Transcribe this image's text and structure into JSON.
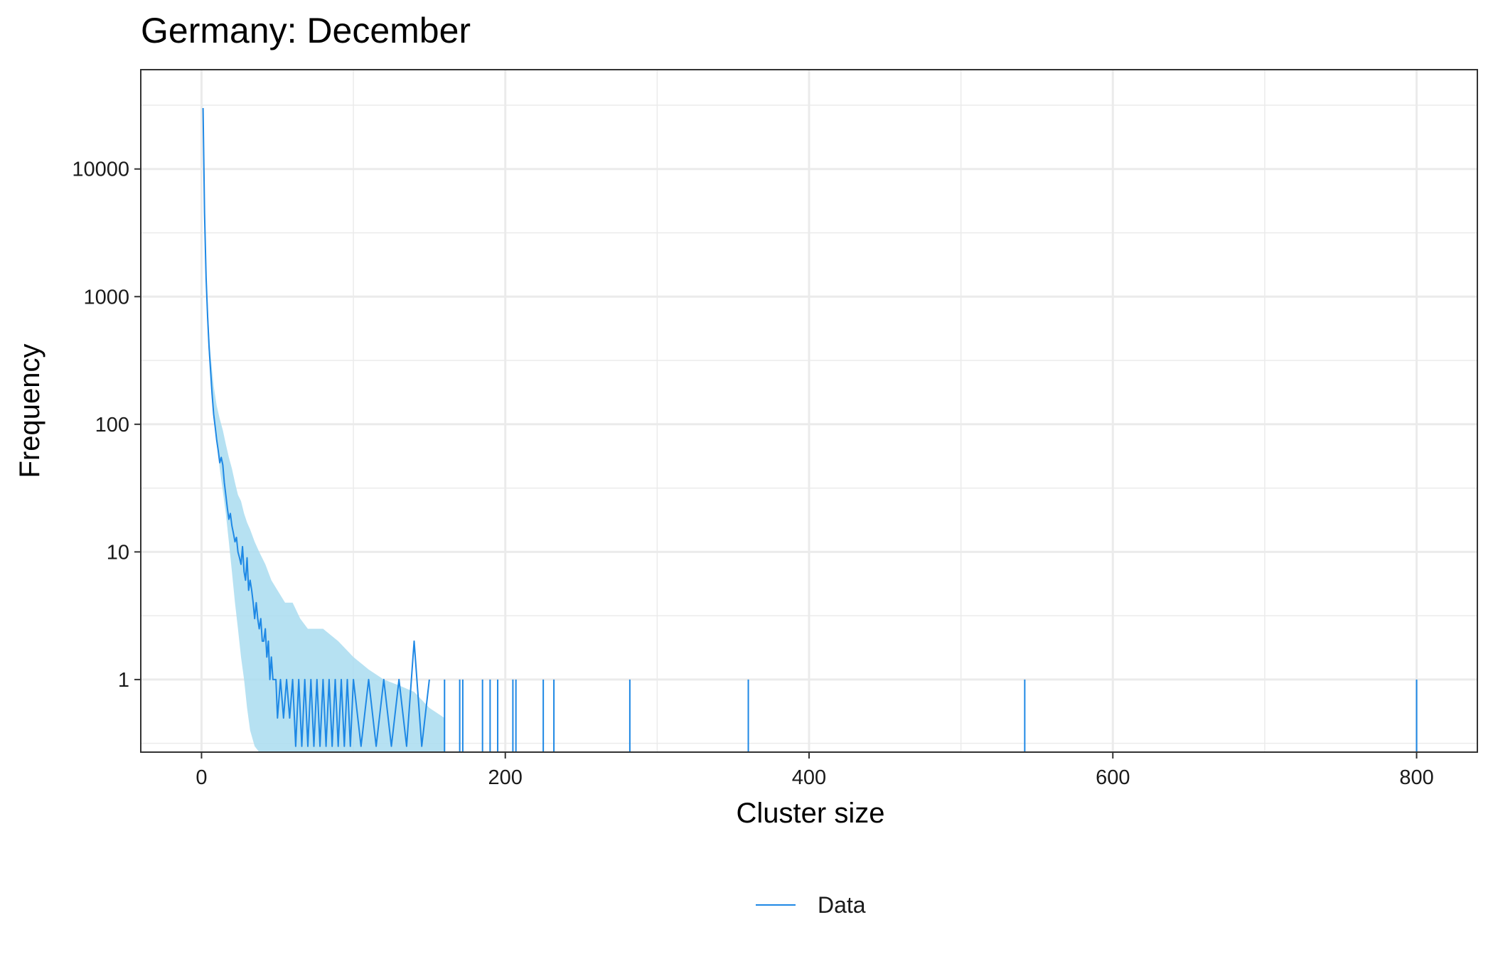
{
  "chart_data": {
    "type": "line",
    "title": "Germany: December",
    "xlabel": "Cluster size",
    "ylabel": "Frequency",
    "xlim": [
      -40,
      840
    ],
    "y_scale": "log10",
    "ylim": [
      0.27,
      60000
    ],
    "x_ticks": [
      {
        "value": 0,
        "label": "0"
      },
      {
        "value": 200,
        "label": "200"
      },
      {
        "value": 400,
        "label": "400"
      },
      {
        "value": 600,
        "label": "600"
      },
      {
        "value": 800,
        "label": "800"
      }
    ],
    "y_ticks": [
      {
        "value": 1,
        "label": "1"
      },
      {
        "value": 10,
        "label": "10"
      },
      {
        "value": 100,
        "label": "100"
      },
      {
        "value": 1000,
        "label": "1000"
      },
      {
        "value": 10000,
        "label": "10000"
      }
    ],
    "grid": true,
    "legend": {
      "position": "bottom",
      "entries": [
        "Data"
      ]
    },
    "colors": {
      "line": "#1e88e5",
      "band": "#a9dcf0",
      "grid": "#ebebeb",
      "panel_border": "#333333"
    },
    "series": [
      {
        "name": "Data",
        "style": "line",
        "x": [
          1,
          2,
          3,
          4,
          5,
          6,
          7,
          8,
          9,
          10,
          11,
          12,
          13,
          14,
          15,
          16,
          17,
          18,
          19,
          20,
          21,
          22,
          23,
          24,
          25,
          26,
          27,
          28,
          29,
          30,
          31,
          32,
          33,
          34,
          35,
          36,
          37,
          38,
          39,
          40,
          41,
          42,
          43,
          44,
          45,
          46,
          47,
          48,
          49,
          50,
          52,
          54,
          56,
          58,
          60,
          62,
          64,
          66,
          68,
          70,
          72,
          74,
          76,
          78,
          80,
          82,
          84,
          86,
          88,
          90,
          92,
          94,
          96,
          98,
          100,
          105,
          110,
          115,
          120,
          125,
          130,
          135,
          140,
          145,
          150
        ],
        "y": [
          30000,
          4500,
          1400,
          700,
          400,
          260,
          170,
          120,
          95,
          75,
          62,
          50,
          55,
          48,
          35,
          28,
          22,
          18,
          20,
          16,
          14,
          12,
          13,
          10,
          9,
          8,
          11,
          7,
          6,
          9,
          5,
          6,
          5,
          4,
          3,
          4,
          3,
          2.5,
          3,
          2,
          2,
          2.5,
          1.5,
          2,
          1,
          1.5,
          1,
          1,
          1,
          0.5,
          1,
          0.5,
          1,
          0.5,
          1,
          0.3,
          1,
          0.3,
          1,
          0.3,
          1,
          0.3,
          1,
          0.3,
          1,
          0.3,
          1,
          0.3,
          1,
          0.3,
          1,
          0.3,
          1,
          0.3,
          1,
          0.3,
          1,
          0.3,
          1,
          0.3,
          1,
          0.3,
          2,
          0.3,
          1
        ]
      },
      {
        "name": "",
        "style": "band",
        "x": [
          1,
          2,
          3,
          4,
          5,
          6,
          8,
          10,
          12,
          14,
          16,
          18,
          20,
          22,
          24,
          26,
          28,
          30,
          32,
          35,
          38,
          42,
          46,
          50,
          55,
          60,
          65,
          70,
          80,
          90,
          100,
          110,
          120,
          130,
          140,
          150,
          160
        ],
        "lower": [
          25000,
          3800,
          1100,
          550,
          320,
          200,
          110,
          70,
          45,
          30,
          20,
          12,
          7,
          4,
          2.5,
          1.5,
          1,
          0.6,
          0.4,
          0.3,
          0.27,
          0.27,
          0.27,
          0.27,
          0.27,
          0.27,
          0.27,
          0.27,
          0.27,
          0.27,
          0.27,
          0.27,
          0.27,
          0.27,
          0.27,
          0.27,
          0.27
        ],
        "upper": [
          36000,
          5500,
          1800,
          900,
          520,
          340,
          200,
          140,
          110,
          90,
          70,
          55,
          45,
          35,
          28,
          25,
          20,
          17,
          15,
          12,
          10,
          8,
          6,
          5,
          4,
          4,
          3,
          2.5,
          2.5,
          2,
          1.5,
          1.2,
          1,
          0.9,
          0.8,
          0.6,
          0.5
        ]
      }
    ],
    "spikes_at_1": [
      160,
      170,
      172,
      185,
      190,
      195,
      205,
      207,
      225,
      232,
      282,
      360,
      542,
      800
    ]
  }
}
